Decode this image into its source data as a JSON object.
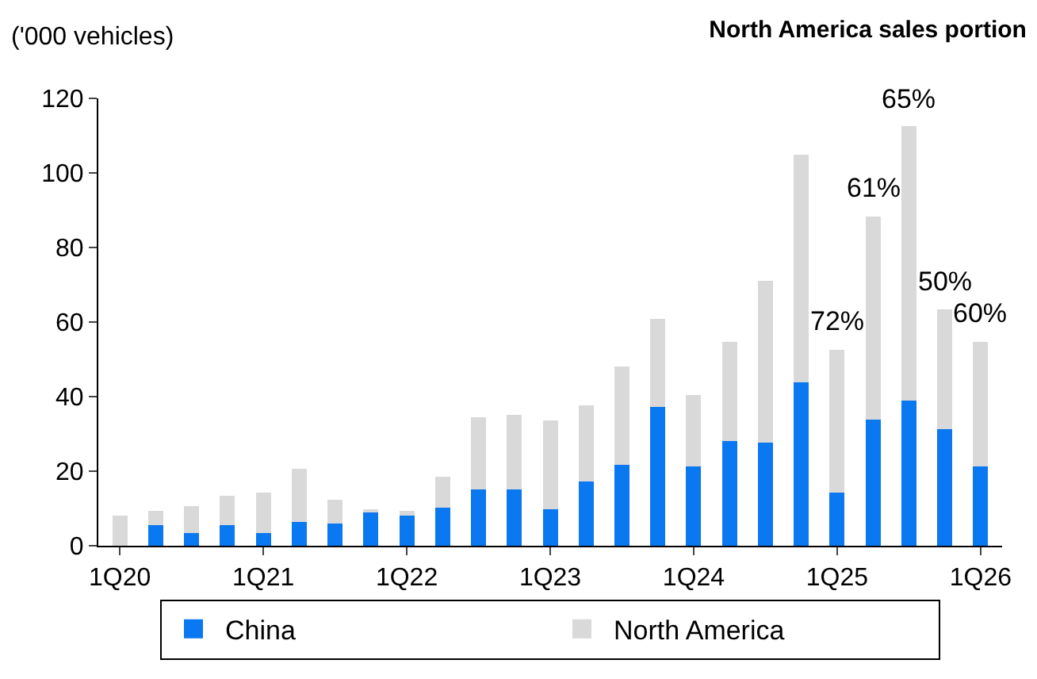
{
  "chart_data": {
    "type": "bar",
    "stacked": true,
    "title": "North America sales portion",
    "ylabel": "('000 vehicles)",
    "categories": [
      "1Q20",
      null,
      null,
      null,
      "1Q21",
      null,
      null,
      null,
      "1Q22",
      null,
      null,
      null,
      "1Q23",
      null,
      null,
      null,
      "1Q24",
      null,
      null,
      null,
      "1Q25",
      null,
      null,
      null,
      "1Q26"
    ],
    "series": [
      {
        "name": "China",
        "color": "#0a78f0",
        "values": [
          0,
          5.6,
          3.5,
          5.6,
          3.5,
          6.4,
          6.0,
          9.3,
          8.5,
          10.2,
          15.2,
          15.2,
          9.7,
          17.3,
          21.7,
          37.2,
          21.3,
          28.1,
          27.6,
          43.9,
          14.2,
          33.8,
          38.9,
          31.3,
          21.3
        ]
      },
      {
        "name": "North America",
        "color": "#d9d9d9",
        "values": [
          8.1,
          3.7,
          7.1,
          7.9,
          10.8,
          14.2,
          6.3,
          0.4,
          0.8,
          8.3,
          19.2,
          20.0,
          23.9,
          20.3,
          26.3,
          23.7,
          19.2,
          26.6,
          43.4,
          61.1,
          38.4,
          54.6,
          73.6,
          32.2,
          33.4
        ]
      }
    ],
    "ylim": [
      0,
      120
    ],
    "yticks": [
      0,
      20,
      40,
      60,
      80,
      100,
      120
    ],
    "legend": "bottom",
    "annotations": [
      "72%",
      "61%",
      "65%",
      "50%",
      "60%"
    ]
  }
}
